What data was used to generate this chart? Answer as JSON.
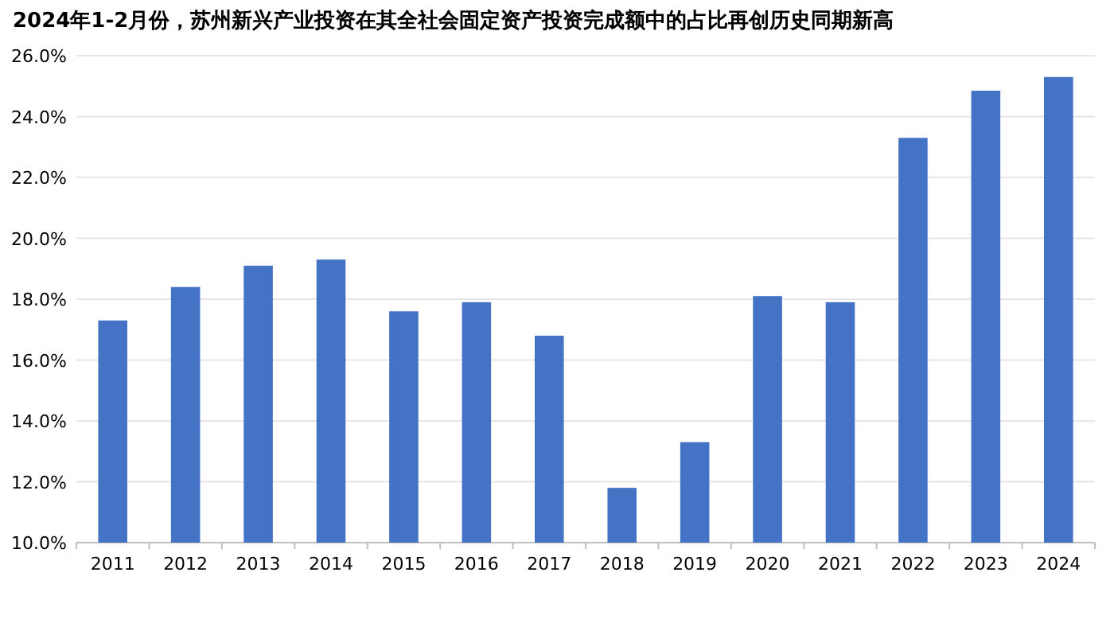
{
  "chart_data": {
    "type": "bar",
    "title": "2024年1-2月份，苏州新兴产业投资在其全社会固定资产投资完成额中的占比再创历史同期新高",
    "categories": [
      "2011",
      "2012",
      "2013",
      "2014",
      "2015",
      "2016",
      "2017",
      "2018",
      "2019",
      "2020",
      "2021",
      "2022",
      "2023",
      "2024"
    ],
    "values": [
      17.3,
      18.4,
      19.1,
      19.3,
      17.6,
      17.9,
      16.8,
      11.8,
      13.3,
      18.1,
      17.9,
      23.3,
      24.85,
      25.3
    ],
    "color": "#4472c4",
    "ylim": [
      10,
      26
    ],
    "yticks": [
      {
        "value": 10,
        "label": "10.0%"
      },
      {
        "value": 12,
        "label": "12.0%"
      },
      {
        "value": 14,
        "label": "14.0%"
      },
      {
        "value": 16,
        "label": "16.0%"
      },
      {
        "value": 18,
        "label": "18.0%"
      },
      {
        "value": 20,
        "label": "20.0%"
      },
      {
        "value": 22,
        "label": "22.0%"
      },
      {
        "value": 24,
        "label": "24.0%"
      },
      {
        "value": 26,
        "label": "26.0%"
      }
    ],
    "grid": "y"
  }
}
